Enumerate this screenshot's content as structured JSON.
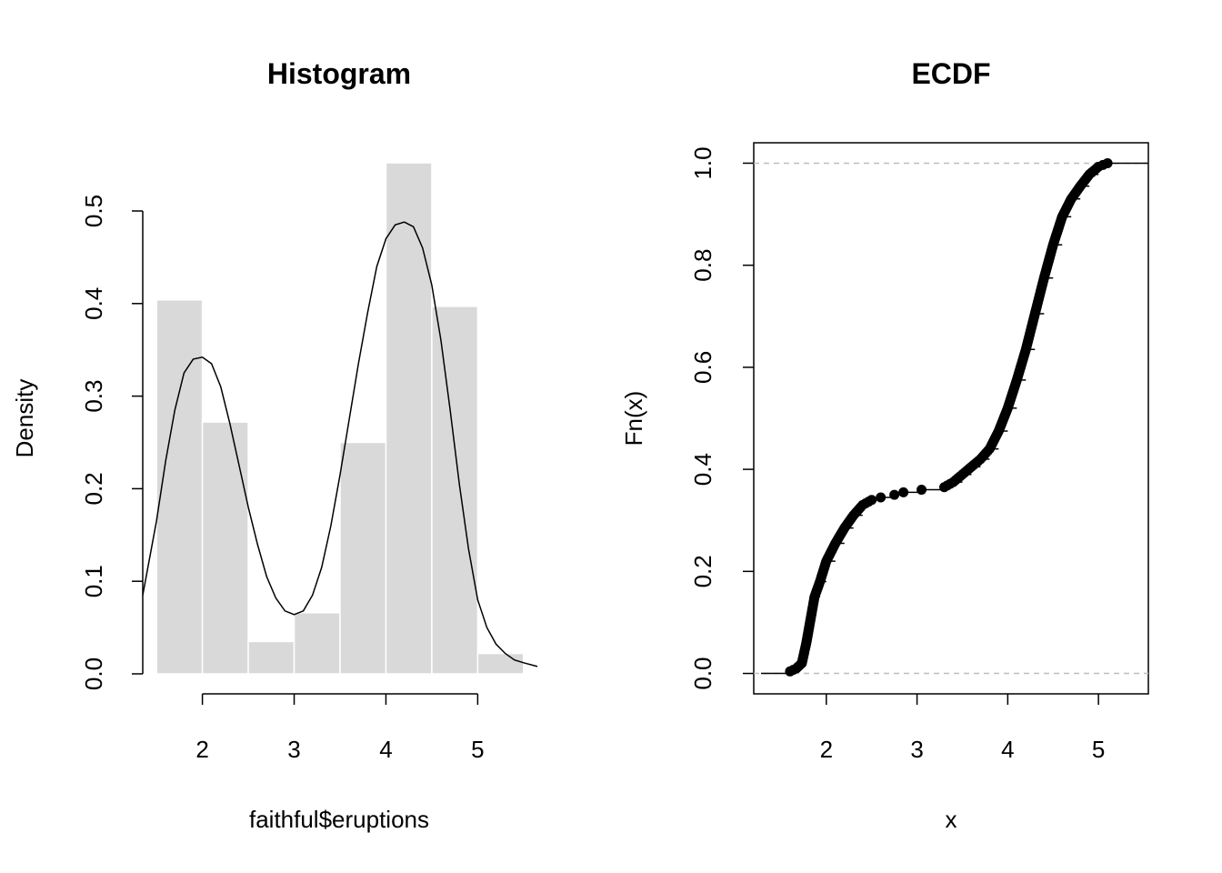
{
  "chart_data": [
    {
      "type": "bar",
      "title": "Histogram",
      "xlabel": "faithful$eruptions",
      "ylabel": "Density",
      "xlim": [
        1.35,
        5.65
      ],
      "ylim": [
        0,
        0.55
      ],
      "x_ticks": [
        2,
        3,
        4,
        5
      ],
      "x_tick_labels": [
        "2",
        "3",
        "4",
        "5"
      ],
      "y_ticks": [
        0.0,
        0.1,
        0.2,
        0.3,
        0.4,
        0.5
      ],
      "y_tick_labels": [
        "0.0",
        "0.1",
        "0.2",
        "0.3",
        "0.4",
        "0.5"
      ],
      "bins": [
        {
          "x0": 1.5,
          "x1": 2.0,
          "density": 0.404
        },
        {
          "x0": 2.0,
          "x1": 2.5,
          "density": 0.272
        },
        {
          "x0": 2.5,
          "x1": 3.0,
          "density": 0.035
        },
        {
          "x0": 3.0,
          "x1": 3.5,
          "density": 0.066
        },
        {
          "x0": 3.5,
          "x1": 4.0,
          "density": 0.25
        },
        {
          "x0": 4.0,
          "x1": 4.5,
          "density": 0.552
        },
        {
          "x0": 4.5,
          "x1": 5.0,
          "density": 0.397
        },
        {
          "x0": 5.0,
          "x1": 5.5,
          "density": 0.022
        }
      ],
      "density_curve": {
        "x": [
          1.35,
          1.5,
          1.6,
          1.7,
          1.8,
          1.9,
          2.0,
          2.1,
          2.2,
          2.3,
          2.4,
          2.5,
          2.6,
          2.7,
          2.8,
          2.9,
          3.0,
          3.1,
          3.2,
          3.3,
          3.4,
          3.5,
          3.6,
          3.7,
          3.8,
          3.9,
          4.0,
          4.1,
          4.2,
          4.3,
          4.4,
          4.5,
          4.6,
          4.7,
          4.8,
          4.9,
          5.0,
          5.1,
          5.2,
          5.3,
          5.4,
          5.5,
          5.65
        ],
        "y": [
          0.085,
          0.165,
          0.23,
          0.285,
          0.325,
          0.34,
          0.342,
          0.335,
          0.31,
          0.27,
          0.225,
          0.18,
          0.14,
          0.105,
          0.082,
          0.068,
          0.064,
          0.068,
          0.085,
          0.115,
          0.16,
          0.215,
          0.275,
          0.335,
          0.39,
          0.44,
          0.47,
          0.485,
          0.488,
          0.483,
          0.46,
          0.42,
          0.36,
          0.285,
          0.205,
          0.135,
          0.08,
          0.05,
          0.032,
          0.022,
          0.015,
          0.012,
          0.008
        ]
      },
      "colors": {
        "bars": "#d9d9d9",
        "bar_border": "#ffffff",
        "curve": "#000000"
      }
    },
    {
      "type": "scatter",
      "title": "ECDF",
      "xlabel": "x",
      "ylabel": "Fn(x)",
      "xlim": [
        1.2,
        5.55
      ],
      "ylim": [
        -0.04,
        1.04
      ],
      "x_ticks": [
        2,
        3,
        4,
        5
      ],
      "x_tick_labels": [
        "2",
        "3",
        "4",
        "5"
      ],
      "y_ticks": [
        0.0,
        0.2,
        0.4,
        0.6,
        0.8,
        1.0
      ],
      "y_tick_labels": [
        "0.0",
        "0.2",
        "0.4",
        "0.6",
        "0.8",
        "1.0"
      ],
      "reference_lines": [
        0,
        1
      ],
      "ecdf_knots": {
        "x": [
          1.6,
          1.67,
          1.73,
          1.78,
          1.83,
          1.87,
          1.93,
          2.0,
          2.1,
          2.2,
          2.3,
          2.4,
          2.5,
          2.6,
          2.75,
          2.85,
          3.05,
          3.3,
          3.4,
          3.5,
          3.6,
          3.7,
          3.8,
          3.9,
          4.0,
          4.1,
          4.2,
          4.3,
          4.4,
          4.5,
          4.6,
          4.7,
          4.8,
          4.9,
          5.0,
          5.1
        ],
        "y": [
          0.004,
          0.01,
          0.02,
          0.06,
          0.11,
          0.15,
          0.18,
          0.22,
          0.255,
          0.285,
          0.31,
          0.33,
          0.34,
          0.345,
          0.35,
          0.355,
          0.36,
          0.365,
          0.375,
          0.39,
          0.405,
          0.42,
          0.44,
          0.475,
          0.52,
          0.575,
          0.635,
          0.705,
          0.775,
          0.84,
          0.895,
          0.93,
          0.955,
          0.978,
          0.993,
          1.0
        ]
      },
      "colors": {
        "points": "#000000",
        "reference_lines": "#bebebe"
      }
    }
  ]
}
